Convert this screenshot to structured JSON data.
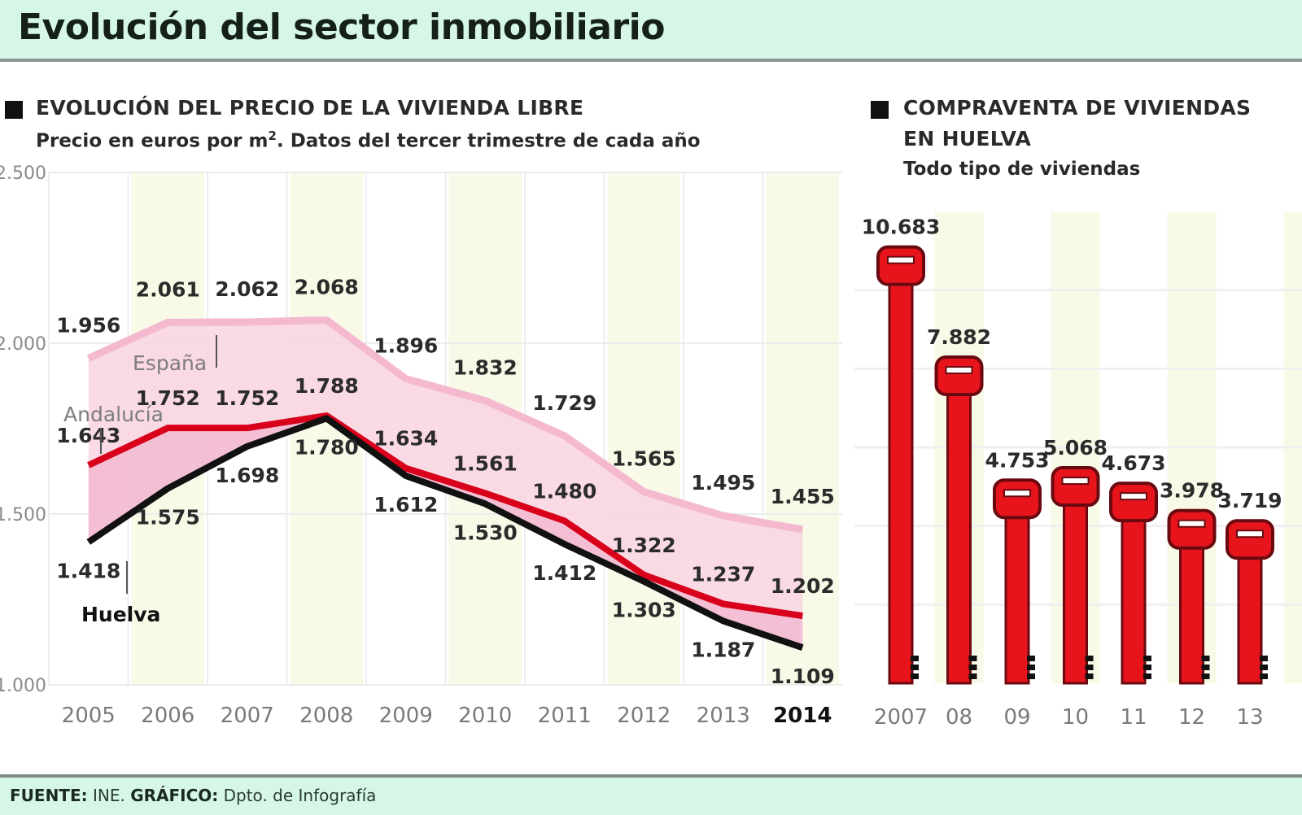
{
  "header": {
    "title": "Evolución del sector inmobiliario"
  },
  "left_panel": {
    "title": "EVOLUCIÓN DEL PRECIO DE LA VIVIENDA LIBRE",
    "subtitle_pre": "Precio en euros por m",
    "subtitle_sup": "2",
    "subtitle_post": ". Datos del tercer trimestre de cada año"
  },
  "right_panel": {
    "title_line1": "COMPRAVENTA DE VIVIENDAS",
    "title_line2": "EN HUELVA",
    "subtitle": "Todo tipo de viviendas"
  },
  "footer": {
    "source_label": "FUENTE:",
    "source_value": " INE. ",
    "graphic_label": "GRÁFICO:",
    "graphic_value": " Dpto. de Infografía"
  },
  "colors": {
    "espana": "#f4b9cf",
    "andalucia": "#d9001b",
    "huelva": "#111111",
    "band_fill": "#f9d3e1",
    "band_fill_dark": "#efa9c8",
    "col_shade": "#f8f9e6",
    "key_red": "#e8141c",
    "key_outline": "#6a0a10",
    "header_bg": "#d6f7e8"
  },
  "chart_data": [
    {
      "type": "line",
      "title": "EVOLUCIÓN DEL PRECIO DE LA VIVIENDA LIBRE",
      "subtitle": "Precio en euros por m2. Datos del tercer trimestre de cada año",
      "xlabel": "",
      "ylabel": "",
      "x": [
        "2005",
        "2006",
        "2007",
        "2008",
        "2009",
        "2010",
        "2011",
        "2012",
        "2013",
        "2014"
      ],
      "highlight_x": "2014",
      "ylim": [
        1000,
        2500
      ],
      "yticks": [
        1000,
        1500,
        2000,
        2500
      ],
      "ytick_labels": [
        ".000",
        ".500",
        ".000",
        ".500"
      ],
      "grid": true,
      "series": [
        {
          "name": "España",
          "values": [
            1956,
            2061,
            2062,
            2068,
            1896,
            1832,
            1729,
            1565,
            1495,
            1455
          ],
          "labels": [
            "1.956",
            "2.061",
            "2.062",
            "2.068",
            "1.896",
            "1.832",
            "1.729",
            "1.565",
            "1.495",
            "1.455"
          ]
        },
        {
          "name": "Andalucía",
          "values": [
            1643,
            1752,
            1752,
            1788,
            1634,
            1561,
            1480,
            1322,
            1237,
            1202
          ],
          "labels": [
            "1.643",
            "1.752",
            "1.752",
            "1.788",
            "1.634",
            "1.561",
            "1.480",
            "1.322",
            "1.237",
            "1.202"
          ]
        },
        {
          "name": "Huelva",
          "values": [
            1418,
            1575,
            1698,
            1780,
            1612,
            1530,
            1412,
            1303,
            1187,
            1109
          ],
          "labels": [
            "1.418",
            "1.575",
            "1.698",
            "1.780",
            "1.612",
            "1.530",
            "1.412",
            "1.303",
            "1.187",
            "1.109"
          ]
        }
      ]
    },
    {
      "type": "bar",
      "title": "COMPRAVENTA DE VIVIENDAS EN HUELVA",
      "subtitle": "Todo tipo de viviendas",
      "categories": [
        "2007",
        "08",
        "09",
        "10",
        "11",
        "12",
        "13"
      ],
      "values": [
        10683,
        7882,
        4753,
        5068,
        4673,
        3978,
        3719
      ],
      "labels": [
        "10.683",
        "7.882",
        "4.753",
        "5.068",
        "4.673",
        "3.978",
        "3.719"
      ],
      "ylim": [
        0,
        12000
      ],
      "grid": true,
      "mark": "key-icon"
    }
  ]
}
